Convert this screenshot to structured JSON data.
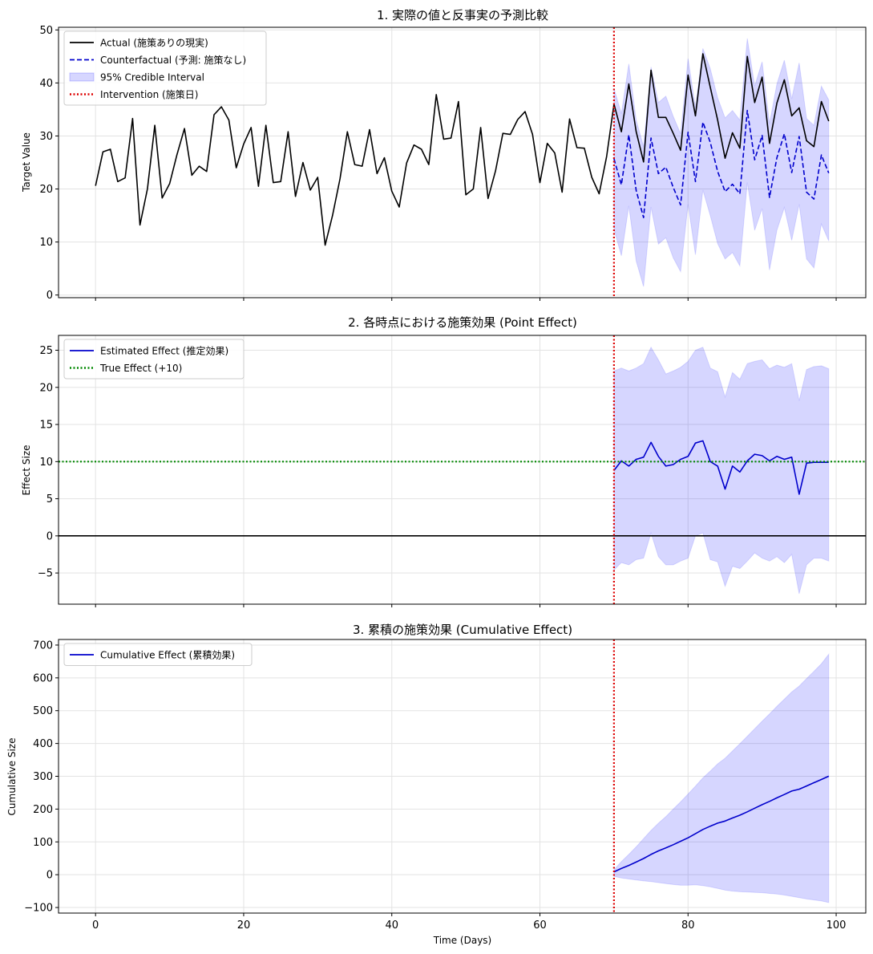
{
  "chart_data": [
    {
      "type": "line",
      "title": "1. 実際の値と反事実の予測比較",
      "xlabel": "",
      "ylabel": "Target Value",
      "xlim": [
        -5,
        104
      ],
      "ylim": [
        -0.5,
        50.5
      ],
      "xticks": [
        0,
        20,
        40,
        60,
        80,
        100
      ],
      "yticks": [
        0,
        10,
        20,
        30,
        40,
        50
      ],
      "grid": true,
      "legend": "top-left",
      "intervention_x": 70,
      "legend_entries": [
        {
          "label": "Actual (施策ありの現実)",
          "style": "solid",
          "color": "#000000"
        },
        {
          "label": "Counterfactual (予測: 施策なし)",
          "style": "dashed",
          "color": "#0000cc"
        },
        {
          "label": "95% Credible Interval",
          "style": "band",
          "color": "#b0b0ff"
        },
        {
          "label": "Intervention (施策日)",
          "style": "dotted",
          "color": "#dd0000"
        }
      ],
      "series": [
        {
          "name": "Actual (施策ありの現実)",
          "x_start": 0,
          "values": [
            20.6,
            27.0,
            27.5,
            21.4,
            22.1,
            33.3,
            13.2,
            20.0,
            32.0,
            18.3,
            21.0,
            26.5,
            31.4,
            22.6,
            24.3,
            23.3,
            34.0,
            35.5,
            33.0,
            24.0,
            28.5,
            31.6,
            20.5,
            32.0,
            21.2,
            21.4,
            30.8,
            18.6,
            25.0,
            19.8,
            22.2,
            9.4,
            15.0,
            21.9,
            30.8,
            24.6,
            24.3,
            31.2,
            22.9,
            25.9,
            19.6,
            16.6,
            24.9,
            28.3,
            27.5,
            24.6,
            37.8,
            29.4,
            29.6,
            36.5,
            18.9,
            20.0,
            31.6,
            18.2,
            23.4,
            30.5,
            30.3,
            33.1,
            34.6,
            30.3,
            21.2,
            28.6,
            26.8,
            19.4,
            33.2,
            27.8,
            27.7,
            22.2,
            19.1,
            26.1,
            36.0,
            30.8,
            39.8,
            30.8,
            25.1,
            42.4,
            33.5,
            33.5,
            30.5,
            27.3,
            41.5,
            33.8,
            45.5,
            39.2,
            33.0,
            25.8,
            30.6,
            27.7,
            45.0,
            36.3,
            41.1,
            28.6,
            36.2,
            40.6,
            33.8,
            35.3,
            29.1,
            28.0,
            36.5,
            32.8
          ]
        },
        {
          "name": "Counterfactual (予測: 施策なし)",
          "x_start": 70,
          "values": [
            25.7,
            20.8,
            30.2,
            19.7,
            14.6,
            29.6,
            22.9,
            24.1,
            20.3,
            17.0,
            30.7,
            21.4,
            32.6,
            28.8,
            23.3,
            19.5,
            20.9,
            19.1,
            34.8,
            25.5,
            30.1,
            18.4,
            25.9,
            30.4,
            23.1,
            29.9,
            19.4,
            18.1,
            26.4,
            23.0
          ]
        }
      ],
      "band": {
        "name": "95% Credible Interval",
        "x_start": 70,
        "upper": [
          39.0,
          34.2,
          43.6,
          33.0,
          28.0,
          43.0,
          36.3,
          37.5,
          33.7,
          30.4,
          44.6,
          35.3,
          46.5,
          42.7,
          37.2,
          33.4,
          34.8,
          33.0,
          48.4,
          39.4,
          44.0,
          32.3,
          39.8,
          44.3,
          37.0,
          43.8,
          33.3,
          32.0,
          39.4,
          36.8
        ],
        "lower": [
          12.4,
          7.4,
          16.8,
          6.4,
          1.6,
          16.6,
          9.6,
          10.8,
          7.0,
          4.4,
          17.1,
          7.6,
          19.8,
          15.0,
          9.7,
          6.8,
          8.0,
          5.5,
          21.2,
          12.2,
          16.3,
          4.7,
          12.2,
          16.5,
          10.3,
          17.1,
          6.8,
          5.1,
          13.4,
          10.2
        ]
      }
    },
    {
      "type": "line",
      "title": "2. 各時点における施策効果 (Point Effect)",
      "xlabel": "",
      "ylabel": "Effect Size",
      "xlim": [
        -5,
        104
      ],
      "ylim": [
        -9.2,
        27.0
      ],
      "xticks": [
        0,
        20,
        40,
        60,
        80,
        100
      ],
      "yticks": [
        -5,
        0,
        5,
        10,
        15,
        20,
        25
      ],
      "ytick_labels": [
        "−5",
        "0",
        "5",
        "10",
        "15",
        "20",
        "25"
      ],
      "grid": true,
      "legend": "top-left",
      "intervention_x": 70,
      "zero_line": 0,
      "reference_line": 10,
      "legend_entries": [
        {
          "label": "Estimated Effect (推定効果)",
          "style": "solid",
          "color": "#0000cc"
        },
        {
          "label": "True Effect (+10)",
          "style": "dotted",
          "color": "#008800"
        }
      ],
      "series": [
        {
          "name": "Estimated Effect (推定効果)",
          "x_start": 70,
          "values": [
            8.8,
            10.1,
            9.4,
            10.3,
            10.6,
            12.6,
            10.7,
            9.4,
            9.6,
            10.3,
            10.7,
            12.5,
            12.8,
            10.0,
            9.4,
            6.3,
            9.4,
            8.6,
            10.1,
            11.0,
            10.8,
            10.1,
            10.7,
            10.3,
            10.6,
            5.6,
            9.8,
            9.9,
            9.9,
            9.9
          ]
        }
      ],
      "band": {
        "name": "95% Credible Interval",
        "x_start": 70,
        "upper": [
          22.2,
          22.6,
          22.2,
          22.6,
          23.2,
          25.4,
          23.7,
          21.8,
          22.2,
          22.7,
          23.5,
          25.0,
          25.4,
          22.6,
          22.1,
          18.7,
          22.0,
          21.1,
          23.2,
          23.5,
          23.7,
          22.5,
          23.0,
          22.7,
          23.2,
          18.2,
          22.4,
          22.8,
          22.9,
          22.5
        ],
        "lower": [
          -4.6,
          -3.6,
          -3.9,
          -3.2,
          -3.0,
          0.4,
          -2.8,
          -3.9,
          -3.9,
          -3.4,
          -3.0,
          0.0,
          0.4,
          -3.2,
          -3.5,
          -6.8,
          -4.1,
          -4.4,
          -3.4,
          -2.3,
          -3.0,
          -3.4,
          -2.8,
          -3.6,
          -2.5,
          -7.8,
          -3.9,
          -3.0,
          -3.0,
          -3.4
        ]
      }
    },
    {
      "type": "line",
      "title": "3. 累積の施策効果 (Cumulative Effect)",
      "xlabel": "Time (Days)",
      "ylabel": "Cumulative Size",
      "xlim": [
        -5,
        104
      ],
      "ylim": [
        -117,
        717
      ],
      "xticks": [
        0,
        20,
        40,
        60,
        80,
        100
      ],
      "yticks": [
        -100,
        0,
        100,
        200,
        300,
        400,
        500,
        600,
        700
      ],
      "ytick_labels": [
        "−100",
        "0",
        "100",
        "200",
        "300",
        "400",
        "500",
        "600",
        "700"
      ],
      "grid": true,
      "legend": "top-left",
      "intervention_x": 70,
      "legend_entries": [
        {
          "label": "Cumulative Effect (累積効果)",
          "style": "solid",
          "color": "#0000cc"
        }
      ],
      "series": [
        {
          "name": "Cumulative Effect (累積効果)",
          "x_start": 70,
          "values": [
            8.8,
            18.9,
            28.3,
            38.6,
            49.2,
            61.8,
            72.5,
            81.9,
            91.5,
            101.8,
            112.5,
            125.0,
            137.8,
            147.8,
            157.2,
            163.5,
            172.9,
            181.5,
            191.6,
            202.6,
            213.4,
            223.5,
            234.2,
            244.5,
            255.1,
            260.7,
            270.5,
            280.4,
            290.3,
            300.2
          ]
        }
      ],
      "band": {
        "name": "95% Credible Interval",
        "x_start": 70,
        "upper": [
          15,
          40,
          62,
          85,
          110,
          135,
          157,
          177,
          200,
          222,
          246,
          270,
          295,
          316,
          338,
          355,
          377,
          399,
          422,
          445,
          468,
          490,
          513,
          535,
          557,
          575,
          598,
          620,
          643,
          672
        ],
        "lower": [
          -5,
          -10,
          -13,
          -16,
          -19,
          -21,
          -24,
          -27,
          -30,
          -32,
          -32,
          -31,
          -33,
          -37,
          -42,
          -47,
          -50,
          -52,
          -53,
          -54,
          -55,
          -57,
          -59,
          -62,
          -66,
          -70,
          -74,
          -77,
          -80,
          -85
        ]
      }
    }
  ]
}
